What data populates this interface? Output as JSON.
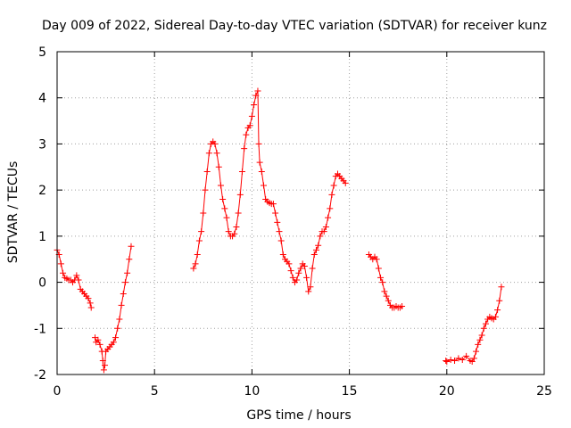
{
  "chart_data": {
    "type": "scatter",
    "title": "Day 009 of 2022, Sidereal Day-to-day VTEC variation (SDTVAR) for receiver kunz",
    "xlabel": "GPS time / hours",
    "ylabel": "SDTVAR / TECUs",
    "xlim": [
      0,
      25
    ],
    "ylim": [
      -2,
      5
    ],
    "x_ticks": [
      0,
      5,
      10,
      15,
      20,
      25
    ],
    "x_tick_labels": [
      "0",
      "5",
      "10",
      "15",
      "20",
      "25"
    ],
    "y_ticks": [
      -2,
      -1,
      0,
      1,
      2,
      3,
      4,
      5
    ],
    "y_tick_labels": [
      "-2",
      "-1",
      "0",
      "1",
      "2",
      "3",
      "4",
      "5"
    ],
    "grid": true,
    "marker": "+",
    "color": "#ff0000",
    "series": [
      {
        "segments": [
          [
            [
              0.0,
              0.7
            ],
            [
              0.1,
              0.6
            ],
            [
              0.2,
              0.4
            ],
            [
              0.3,
              0.2
            ],
            [
              0.4,
              0.1
            ],
            [
              0.5,
              0.08
            ],
            [
              0.6,
              0.05
            ],
            [
              0.7,
              0.05
            ],
            [
              0.8,
              0.0
            ],
            [
              0.9,
              0.05
            ],
            [
              1.0,
              0.15
            ],
            [
              1.1,
              0.05
            ],
            [
              1.2,
              -0.15
            ],
            [
              1.3,
              -0.2
            ],
            [
              1.4,
              -0.25
            ],
            [
              1.5,
              -0.3
            ],
            [
              1.6,
              -0.35
            ],
            [
              1.7,
              -0.45
            ],
            [
              1.75,
              -0.55
            ]
          ],
          [
            [
              1.95,
              -1.2
            ],
            [
              2.0,
              -1.3
            ],
            [
              2.1,
              -1.25
            ],
            [
              2.2,
              -1.35
            ],
            [
              2.3,
              -1.5
            ],
            [
              2.35,
              -1.7
            ],
            [
              2.4,
              -1.9
            ],
            [
              2.45,
              -1.8
            ],
            [
              2.5,
              -1.5
            ],
            [
              2.6,
              -1.45
            ],
            [
              2.7,
              -1.4
            ],
            [
              2.8,
              -1.35
            ],
            [
              2.9,
              -1.3
            ],
            [
              3.0,
              -1.2
            ],
            [
              3.1,
              -1.0
            ],
            [
              3.2,
              -0.8
            ],
            [
              3.3,
              -0.5
            ],
            [
              3.4,
              -0.25
            ],
            [
              3.5,
              0.0
            ],
            [
              3.6,
              0.2
            ],
            [
              3.7,
              0.5
            ],
            [
              3.8,
              0.78
            ]
          ],
          [
            [
              7.0,
              0.3
            ],
            [
              7.1,
              0.4
            ],
            [
              7.2,
              0.6
            ],
            [
              7.3,
              0.9
            ],
            [
              7.4,
              1.1
            ],
            [
              7.5,
              1.5
            ],
            [
              7.6,
              2.0
            ],
            [
              7.7,
              2.4
            ],
            [
              7.8,
              2.8
            ],
            [
              7.9,
              3.0
            ],
            [
              8.0,
              3.05
            ],
            [
              8.1,
              3.0
            ],
            [
              8.2,
              2.8
            ],
            [
              8.3,
              2.5
            ],
            [
              8.4,
              2.1
            ],
            [
              8.5,
              1.8
            ],
            [
              8.6,
              1.6
            ],
            [
              8.7,
              1.4
            ],
            [
              8.8,
              1.1
            ],
            [
              8.9,
              1.0
            ],
            [
              9.0,
              1.0
            ],
            [
              9.1,
              1.05
            ],
            [
              9.2,
              1.2
            ],
            [
              9.3,
              1.5
            ],
            [
              9.4,
              1.9
            ],
            [
              9.5,
              2.4
            ],
            [
              9.6,
              2.9
            ],
            [
              9.7,
              3.2
            ],
            [
              9.8,
              3.35
            ],
            [
              9.9,
              3.4
            ],
            [
              10.0,
              3.6
            ],
            [
              10.1,
              3.85
            ],
            [
              10.2,
              4.05
            ],
            [
              10.3,
              4.15
            ],
            [
              10.35,
              3.0
            ],
            [
              10.4,
              2.6
            ],
            [
              10.5,
              2.4
            ],
            [
              10.6,
              2.1
            ],
            [
              10.7,
              1.8
            ],
            [
              10.8,
              1.75
            ],
            [
              10.9,
              1.72
            ],
            [
              11.0,
              1.7
            ],
            [
              11.1,
              1.7
            ],
            [
              11.2,
              1.5
            ],
            [
              11.3,
              1.3
            ],
            [
              11.4,
              1.1
            ],
            [
              11.5,
              0.9
            ],
            [
              11.6,
              0.6
            ],
            [
              11.7,
              0.5
            ],
            [
              11.8,
              0.45
            ],
            [
              11.9,
              0.4
            ],
            [
              12.0,
              0.25
            ],
            [
              12.1,
              0.1
            ],
            [
              12.2,
              0.0
            ],
            [
              12.3,
              0.05
            ],
            [
              12.4,
              0.2
            ],
            [
              12.5,
              0.3
            ],
            [
              12.6,
              0.4
            ],
            [
              12.7,
              0.35
            ],
            [
              12.8,
              0.1
            ],
            [
              12.9,
              -0.2
            ],
            [
              13.0,
              -0.1
            ],
            [
              13.1,
              0.3
            ],
            [
              13.2,
              0.6
            ],
            [
              13.3,
              0.7
            ],
            [
              13.4,
              0.8
            ],
            [
              13.5,
              1.0
            ],
            [
              13.6,
              1.1
            ],
            [
              13.7,
              1.1
            ],
            [
              13.8,
              1.2
            ],
            [
              13.9,
              1.4
            ],
            [
              14.0,
              1.6
            ],
            [
              14.1,
              1.9
            ],
            [
              14.2,
              2.1
            ],
            [
              14.3,
              2.3
            ],
            [
              14.4,
              2.35
            ],
            [
              14.5,
              2.3
            ],
            [
              14.6,
              2.25
            ],
            [
              14.7,
              2.2
            ],
            [
              14.8,
              2.15
            ]
          ],
          [
            [
              16.0,
              0.6
            ],
            [
              16.1,
              0.55
            ],
            [
              16.2,
              0.5
            ],
            [
              16.3,
              0.55
            ],
            [
              16.4,
              0.5
            ],
            [
              16.5,
              0.3
            ],
            [
              16.6,
              0.1
            ],
            [
              16.7,
              0.0
            ],
            [
              16.8,
              -0.2
            ],
            [
              16.9,
              -0.3
            ],
            [
              17.0,
              -0.4
            ],
            [
              17.1,
              -0.5
            ],
            [
              17.2,
              -0.55
            ],
            [
              17.3,
              -0.55
            ],
            [
              17.4,
              -0.52
            ],
            [
              17.5,
              -0.55
            ],
            [
              17.6,
              -0.55
            ],
            [
              17.7,
              -0.52
            ]
          ],
          [
            [
              19.95,
              -1.7
            ],
            [
              20.0,
              -1.72
            ],
            [
              20.2,
              -1.68
            ],
            [
              20.4,
              -1.7
            ],
            [
              20.6,
              -1.65
            ],
            [
              20.8,
              -1.68
            ],
            [
              21.0,
              -1.6
            ],
            [
              21.2,
              -1.7
            ],
            [
              21.3,
              -1.72
            ],
            [
              21.4,
              -1.65
            ],
            [
              21.5,
              -1.5
            ],
            [
              21.6,
              -1.35
            ],
            [
              21.7,
              -1.25
            ],
            [
              21.8,
              -1.15
            ],
            [
              21.9,
              -1.0
            ],
            [
              22.0,
              -0.9
            ],
            [
              22.1,
              -0.8
            ],
            [
              22.2,
              -0.75
            ],
            [
              22.3,
              -0.78
            ],
            [
              22.4,
              -0.8
            ],
            [
              22.5,
              -0.75
            ],
            [
              22.6,
              -0.6
            ],
            [
              22.7,
              -0.4
            ],
            [
              22.8,
              -0.1
            ]
          ]
        ]
      }
    ]
  }
}
